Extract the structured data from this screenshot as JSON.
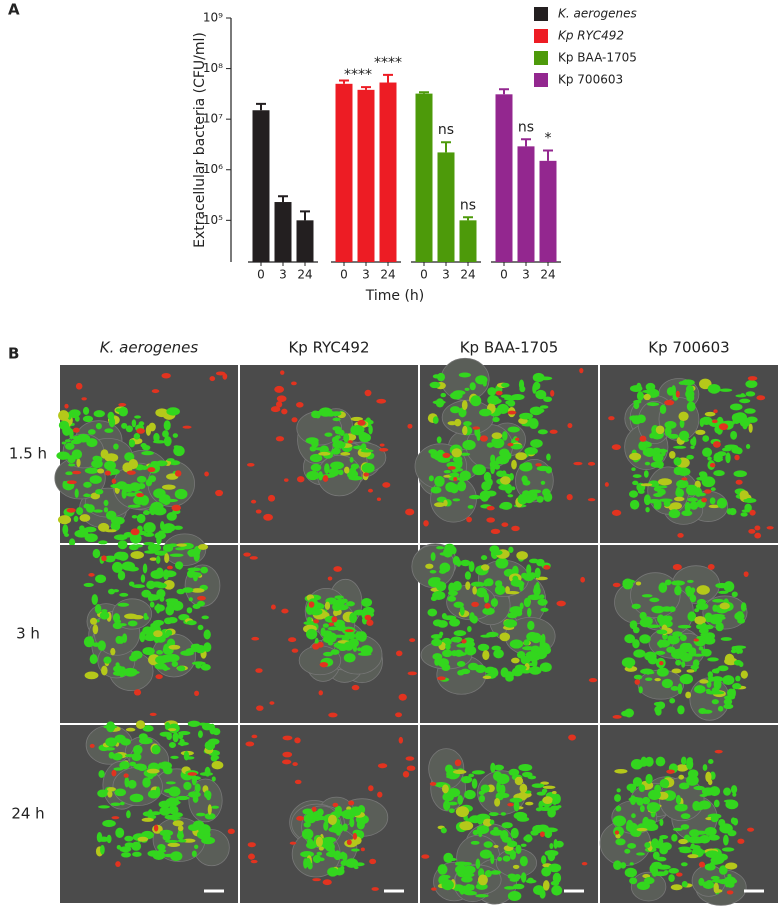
{
  "panel_labels": [
    "A",
    "B"
  ],
  "chart_data": {
    "type": "bar",
    "ylabel": "Extracellular bacteria (CFU/ml)",
    "xlabel": "Time (h)",
    "categories": [
      "0",
      "3",
      "24"
    ],
    "yscale": "log",
    "ylim": [
      15000,
      1000000000
    ],
    "yticks": [
      {
        "value": 100000,
        "label": "10⁵"
      },
      {
        "value": 1000000,
        "label": "10⁶"
      },
      {
        "value": 10000000,
        "label": "10⁷"
      },
      {
        "value": 100000000,
        "label": "10⁸"
      },
      {
        "value": 1000000000,
        "label": "10⁹"
      }
    ],
    "legend": "upper right",
    "series": [
      {
        "name": "K. aerogenes",
        "color": "#231f20",
        "values": [
          15000000,
          230000,
          100000
        ],
        "errors": [
          5000000,
          70000,
          50000
        ],
        "annotations": [
          null,
          null,
          null
        ]
      },
      {
        "name": "Kp RYC492",
        "color": "#ed1c24",
        "values": [
          50000000,
          38000000,
          53000000
        ],
        "errors": [
          8000000,
          5000000,
          22000000
        ],
        "annotations": [
          null,
          "****",
          "****"
        ]
      },
      {
        "name": "Kp BAA-1705",
        "color": "#4d9a0a",
        "values": [
          32000000,
          2200000,
          100000
        ],
        "errors": [
          2000000,
          1300000,
          15000
        ],
        "annotations": [
          null,
          "ns",
          "ns"
        ]
      },
      {
        "name": "Kp 700603",
        "color": "#93278f",
        "values": [
          31000000,
          2900000,
          1500000
        ],
        "errors": [
          8000000,
          1100000,
          900000
        ],
        "annotations": [
          null,
          "ns",
          "*"
        ]
      }
    ]
  },
  "micrographs": {
    "columns": [
      "K. aerogenes",
      "Kp RYC492",
      "Kp BAA-1705",
      "Kp 700603"
    ],
    "rows": [
      "1.5 h",
      "3 h",
      "24 h"
    ]
  }
}
